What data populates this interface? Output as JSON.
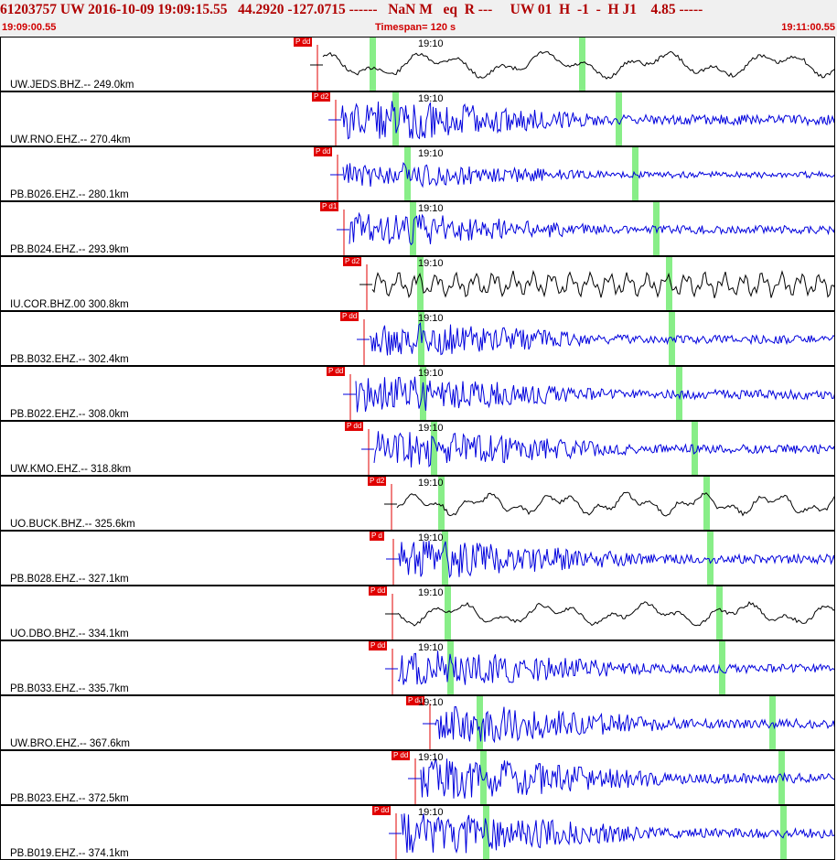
{
  "header": {
    "event_line": "61203757 UW 2016-10-09 19:09:15.55   44.2920 -127.0715 ------   NaN M   eq  R ---     UW 01  H  -1  -  H J1    4.85 -----",
    "start_time": "19:09:00.55",
    "timespan": "Timespan= 120 s",
    "end_time": "19:11:00.55"
  },
  "colors": {
    "trace_blue": "#0000dd",
    "trace_black": "#000000",
    "pick_red": "#e00000",
    "s_marker_green": "#88ee88"
  },
  "panels": [
    {
      "station": "UW.JEDS.BHZ.-- 249.0km",
      "time": "19:10",
      "pick": "P dd",
      "color": "#000000",
      "amp": 14,
      "freq": 0.05,
      "green": 632
    },
    {
      "station": "UW.RNO.EHZ.-- 270.4km",
      "time": "19:10",
      "pick": "P d2",
      "color": "#0000dd",
      "amp": 22,
      "freq": 0.7,
      "green": 672
    },
    {
      "station": "PB.B026.EHZ.-- 280.1km",
      "time": "19:10",
      "pick": "P dd",
      "color": "#0000dd",
      "amp": 14,
      "freq": 0.7,
      "green": 690
    },
    {
      "station": "PB.B024.EHZ.-- 293.9km",
      "time": "19:10",
      "pick": "P d1",
      "color": "#0000dd",
      "amp": 18,
      "freq": 0.7,
      "green": 713
    },
    {
      "station": "IU.COR.BHZ.00 300.8km",
      "time": "19:10",
      "pick": "P d2",
      "color": "#000000",
      "amp": 14,
      "freq": 0.3,
      "green": 727
    },
    {
      "station": "PB.B032.EHZ.-- 302.4km",
      "time": "19:10",
      "pick": "P dd",
      "color": "#0000dd",
      "amp": 18,
      "freq": 0.7,
      "green": 730
    },
    {
      "station": "PB.B022.EHZ.-- 308.0km",
      "time": "19:10",
      "pick": "P dd",
      "color": "#0000dd",
      "amp": 20,
      "freq": 0.7,
      "green": 738
    },
    {
      "station": "UW.KMO.EHZ.-- 318.8km",
      "time": "19:10",
      "pick": "P dd",
      "color": "#0000dd",
      "amp": 20,
      "freq": 0.7,
      "green": 755
    },
    {
      "station": "UO.BUCK.BHZ.-- 325.6km",
      "time": "19:10",
      "pick": "P d2",
      "color": "#000000",
      "amp": 12,
      "freq": 0.08,
      "green": 768
    },
    {
      "station": "PB.B028.EHZ.-- 327.1km",
      "time": "19:10",
      "pick": "P d",
      "color": "#0000dd",
      "amp": 20,
      "freq": 0.7,
      "green": 772
    },
    {
      "station": "UO.DBO.BHZ.-- 334.1km",
      "time": "19:10",
      "pick": "P dd",
      "color": "#000000",
      "amp": 12,
      "freq": 0.06,
      "green": 782
    },
    {
      "station": "PB.B033.EHZ.-- 335.7km",
      "time": "19:10",
      "pick": "P dd",
      "color": "#0000dd",
      "amp": 20,
      "freq": 0.7,
      "green": 785
    },
    {
      "station": "UW.BRO.EHZ.-- 367.6km",
      "time": "19:10",
      "pick": "P dd",
      "color": "#0000dd",
      "amp": 20,
      "freq": 0.7,
      "green": 840
    },
    {
      "station": "PB.B023.EHZ.-- 372.5km",
      "time": "19:10",
      "pick": "P dd",
      "color": "#0000dd",
      "amp": 22,
      "freq": 0.7,
      "green": 850
    },
    {
      "station": "PB.B019.EHZ.-- 374.1km",
      "time": "19:10",
      "pick": "P dd",
      "color": "#0000dd",
      "amp": 22,
      "freq": 0.7,
      "green": 852
    }
  ]
}
